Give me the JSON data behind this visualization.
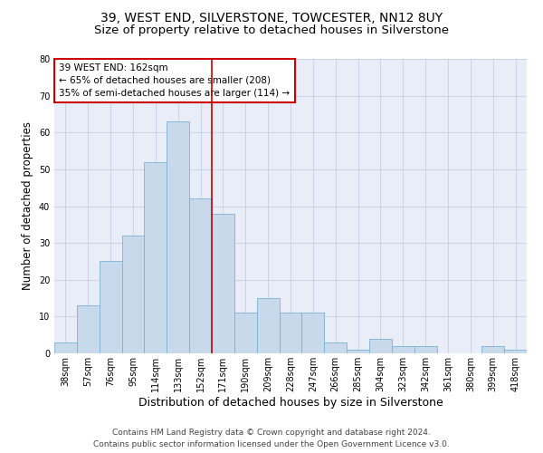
{
  "title": "39, WEST END, SILVERSTONE, TOWCESTER, NN12 8UY",
  "subtitle": "Size of property relative to detached houses in Silverstone",
  "xlabel": "Distribution of detached houses by size in Silverstone",
  "ylabel": "Number of detached properties",
  "categories": [
    "38sqm",
    "57sqm",
    "76sqm",
    "95sqm",
    "114sqm",
    "133sqm",
    "152sqm",
    "171sqm",
    "190sqm",
    "209sqm",
    "228sqm",
    "247sqm",
    "266sqm",
    "285sqm",
    "304sqm",
    "323sqm",
    "342sqm",
    "361sqm",
    "380sqm",
    "399sqm",
    "418sqm"
  ],
  "values": [
    3,
    13,
    25,
    32,
    52,
    63,
    42,
    38,
    11,
    15,
    11,
    11,
    3,
    1,
    4,
    2,
    2,
    0,
    0,
    2,
    1
  ],
  "bar_color": "#c9d9ec",
  "bar_edge_color": "#7ab3d4",
  "grid_color": "#c0c8dc",
  "background_color": "#e8edf8",
  "vline_x_index": 6.5,
  "vline_color": "#cc0000",
  "annotation_box_text": "39 WEST END: 162sqm\n← 65% of detached houses are smaller (208)\n35% of semi-detached houses are larger (114) →",
  "annotation_box_color": "#cc0000",
  "ylim": [
    0,
    80
  ],
  "yticks": [
    0,
    10,
    20,
    30,
    40,
    50,
    60,
    70,
    80
  ],
  "footer_line1": "Contains HM Land Registry data © Crown copyright and database right 2024.",
  "footer_line2": "Contains public sector information licensed under the Open Government Licence v3.0.",
  "title_fontsize": 10,
  "subtitle_fontsize": 9.5,
  "xlabel_fontsize": 9,
  "ylabel_fontsize": 8.5,
  "tick_fontsize": 7,
  "annotation_fontsize": 7.5,
  "footer_fontsize": 6.5
}
